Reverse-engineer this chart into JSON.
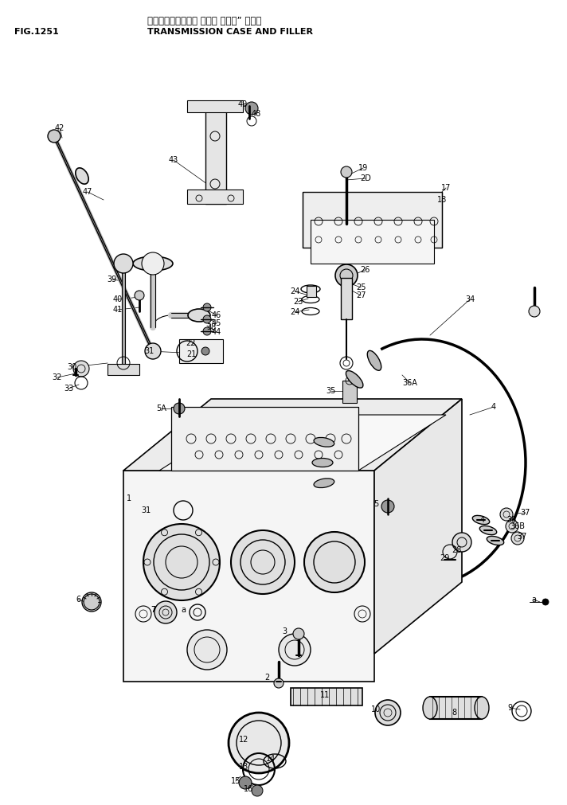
{
  "title_japanese": "トランスミッション ケース オヨビ” フィラ",
  "title_english": "TRANSMISSION CASE AND FILLER",
  "fig_number": "FIG.1251",
  "bg_color": "#ffffff",
  "lc": "#000000",
  "tc": "#000000"
}
